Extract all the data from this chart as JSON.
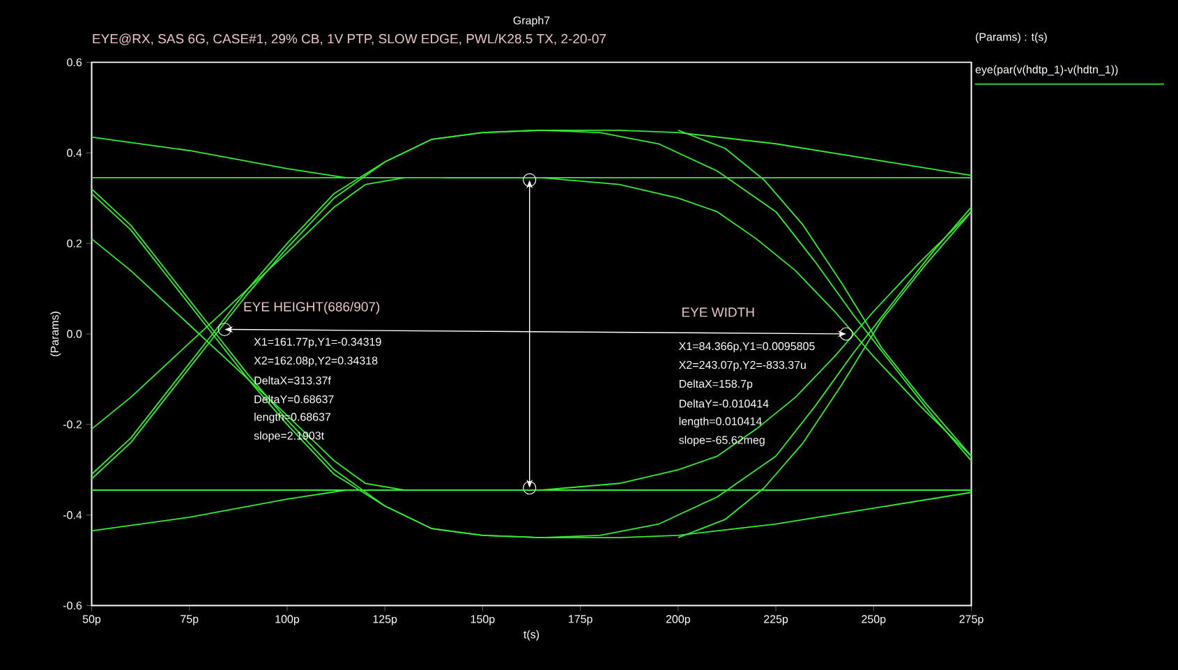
{
  "chart_data": {
    "type": "line",
    "title": "Graph7",
    "subtitle": "EYE@RX, SAS 6G, CASE#1, 29% CB, 1V PTP, SLOW EDGE, PWL/K28.5 TX, 2-20-07",
    "xlabel": "t(s)",
    "ylabel": "(Params)",
    "legend_title": "(Params) : t(s)",
    "legend": "top right",
    "xlim": [
      50,
      275
    ],
    "ylim": [
      -0.6,
      0.6
    ],
    "xticks": [
      {
        "value": 50,
        "label": "50p"
      },
      {
        "value": 75,
        "label": "75p"
      },
      {
        "value": 100,
        "label": "100p"
      },
      {
        "value": 125,
        "label": "125p"
      },
      {
        "value": 150,
        "label": "150p"
      },
      {
        "value": 175,
        "label": "175p"
      },
      {
        "value": 200,
        "label": "200p"
      },
      {
        "value": 225,
        "label": "225p"
      },
      {
        "value": 250,
        "label": "250p"
      },
      {
        "value": 275,
        "label": "275p"
      }
    ],
    "yticks": [
      -0.6,
      -0.4,
      -0.2,
      {
        "value": 0,
        "label": "0.0"
      },
      0.2,
      0.4,
      0.6
    ],
    "annotations": [
      "EYE HEIGHT(686/907)",
      "X1=161.77p,Y1=-0.34319",
      "X2=162.08p,Y2=0.34318",
      "DeltaX=313.37f",
      "DeltaY=0.68637",
      "length=0.68637",
      "slope=2.1903t",
      "EYE WIDTH",
      "X1=84.366p,Y1=0.0095805",
      "X2=243.07p,Y2=-833.37u",
      "DeltaX=158.7p",
      "DeltaY=-0.010414",
      "length=0.010414",
      "slope=-65.62meg"
    ],
    "series": [
      {
        "name": "eye(par(v(hdtp_1)-v(hdtn_1))",
        "color": "#33ee33",
        "x": [
          50,
          100,
          150,
          200,
          275
        ],
        "values": [
          0.345,
          0.345,
          0.345,
          0.345,
          0.345
        ]
      },
      {
        "color": "#33ee33",
        "x": [
          50,
          100,
          150,
          200,
          275
        ],
        "values": [
          -0.345,
          -0.345,
          -0.345,
          -0.345,
          -0.345
        ]
      },
      {
        "color": "#33ee33",
        "x": [
          50,
          75,
          100,
          115
        ],
        "values": [
          0.435,
          0.405,
          0.365,
          0.345
        ]
      },
      {
        "color": "#33ee33",
        "x": [
          50,
          75,
          100,
          115
        ],
        "values": [
          -0.435,
          -0.405,
          -0.365,
          -0.345
        ]
      },
      {
        "color": "#33ee33",
        "x": [
          50,
          60,
          70,
          80,
          90,
          100,
          112,
          125,
          137,
          150,
          165,
          185,
          200,
          225,
          250,
          275
        ],
        "values": [
          -0.32,
          -0.24,
          -0.13,
          -0.02,
          0.09,
          0.19,
          0.3,
          0.38,
          0.43,
          0.445,
          0.45,
          0.45,
          0.445,
          0.42,
          0.385,
          0.35
        ]
      },
      {
        "color": "#33ee33",
        "x": [
          50,
          60,
          70,
          80,
          90,
          100,
          112,
          125,
          137,
          150,
          165,
          180,
          195,
          210,
          225,
          235,
          245,
          255,
          265,
          275
        ],
        "values": [
          -0.31,
          -0.23,
          -0.12,
          -0.01,
          0.1,
          0.2,
          0.31,
          0.38,
          0.43,
          0.445,
          0.45,
          0.445,
          0.42,
          0.36,
          0.27,
          0.16,
          0.04,
          -0.07,
          -0.18,
          -0.28
        ]
      },
      {
        "color": "#33ee33",
        "x": [
          50,
          60,
          70,
          80,
          90,
          100,
          112,
          125,
          137,
          150,
          165,
          185,
          200,
          225,
          250,
          275
        ],
        "values": [
          0.32,
          0.24,
          0.13,
          0.02,
          -0.09,
          -0.19,
          -0.3,
          -0.38,
          -0.43,
          -0.445,
          -0.45,
          -0.45,
          -0.445,
          -0.42,
          -0.385,
          -0.35
        ]
      },
      {
        "color": "#33ee33",
        "x": [
          50,
          60,
          70,
          80,
          90,
          100,
          112,
          125,
          137,
          150,
          165,
          180,
          195,
          210,
          225,
          235,
          245,
          255,
          265,
          275
        ],
        "values": [
          0.31,
          0.23,
          0.12,
          0.01,
          -0.1,
          -0.2,
          -0.31,
          -0.38,
          -0.43,
          -0.445,
          -0.45,
          -0.445,
          -0.42,
          -0.36,
          -0.27,
          -0.16,
          -0.04,
          0.07,
          0.18,
          0.28
        ]
      },
      {
        "color": "#33ee33",
        "x": [
          50,
          60,
          75,
          90,
          100,
          112,
          120,
          130
        ],
        "values": [
          0.21,
          0.14,
          0.02,
          -0.1,
          -0.18,
          -0.28,
          -0.33,
          -0.345
        ]
      },
      {
        "color": "#33ee33",
        "x": [
          50,
          60,
          75,
          90,
          100,
          112,
          120,
          130
        ],
        "values": [
          -0.21,
          -0.14,
          -0.02,
          0.1,
          0.18,
          0.28,
          0.33,
          0.345
        ]
      },
      {
        "color": "#33ee33",
        "x": [
          140,
          165,
          185,
          200,
          210,
          220,
          230,
          240,
          250,
          262,
          275
        ],
        "values": [
          0.345,
          0.345,
          0.33,
          0.3,
          0.27,
          0.21,
          0.14,
          0.05,
          -0.05,
          -0.16,
          -0.27
        ]
      },
      {
        "color": "#33ee33",
        "x": [
          140,
          165,
          185,
          200,
          210,
          220,
          230,
          240,
          250,
          262,
          275
        ],
        "values": [
          -0.345,
          -0.345,
          -0.33,
          -0.3,
          -0.27,
          -0.21,
          -0.14,
          -0.05,
          0.05,
          0.16,
          0.27
        ]
      },
      {
        "color": "#33ee33",
        "x": [
          200,
          212,
          222,
          232,
          242,
          252,
          263,
          275
        ],
        "values": [
          -0.45,
          -0.41,
          -0.34,
          -0.24,
          -0.11,
          0.03,
          0.15,
          0.27
        ]
      },
      {
        "color": "#33ee33",
        "x": [
          200,
          212,
          222,
          232,
          242,
          252,
          263,
          275
        ],
        "values": [
          0.45,
          0.41,
          0.34,
          0.24,
          0.11,
          -0.03,
          -0.15,
          -0.27
        ]
      },
      {
        "color": "#ffffff",
        "type": "scatter",
        "marker": "circle",
        "x": [
          84,
          243,
          162,
          162
        ],
        "values": [
          0.01,
          0,
          -0.34,
          0.34
        ]
      }
    ]
  }
}
